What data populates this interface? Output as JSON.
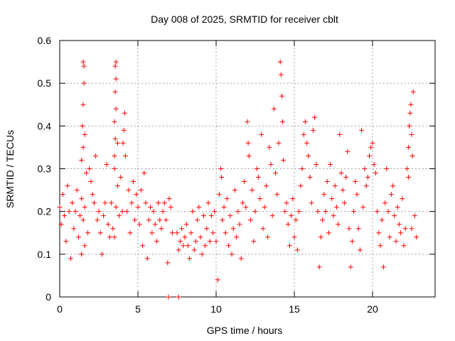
{
  "chart_data": {
    "type": "scatter",
    "title": "Day 008 of 2025, SRMTID for receiver cblt",
    "xlabel": "GPS time / hours",
    "ylabel": "SRMTID / TECUs",
    "xlim": [
      0,
      24
    ],
    "ylim": [
      0,
      0.6
    ],
    "xticks": [
      0,
      5,
      10,
      15,
      20
    ],
    "xtick_labels": [
      "0",
      "5",
      "10",
      "15",
      "20"
    ],
    "yticks": [
      0,
      0.1,
      0.2,
      0.3,
      0.4,
      0.5,
      0.6
    ],
    "ytick_labels": [
      "0",
      "0.1",
      "0.2",
      "0.3",
      "0.4",
      "0.5",
      "0.6"
    ],
    "grid": true,
    "marker": "plus",
    "color": "#ff0000",
    "series": [
      {
        "name": "SRMTID",
        "points": [
          [
            0.0,
            0.21
          ],
          [
            0.1,
            0.17
          ],
          [
            0.2,
            0.24
          ],
          [
            0.3,
            0.19
          ],
          [
            0.4,
            0.13
          ],
          [
            0.5,
            0.26
          ],
          [
            0.6,
            0.2
          ],
          [
            0.7,
            0.09
          ],
          [
            0.8,
            0.22
          ],
          [
            0.9,
            0.16
          ],
          [
            1.0,
            0.2
          ],
          [
            1.1,
            0.25
          ],
          [
            1.2,
            0.14
          ],
          [
            1.3,
            0.19
          ],
          [
            1.4,
            0.23
          ],
          [
            1.5,
            0.18
          ],
          [
            1.6,
            0.21
          ],
          [
            1.7,
            0.29
          ],
          [
            1.8,
            0.15
          ],
          [
            1.9,
            0.3
          ],
          [
            1.4,
            0.32
          ],
          [
            1.5,
            0.35
          ],
          [
            1.45,
            0.4
          ],
          [
            1.5,
            0.45
          ],
          [
            1.55,
            0.5
          ],
          [
            1.55,
            0.54
          ],
          [
            1.5,
            0.55
          ],
          [
            1.6,
            0.38
          ],
          [
            1.4,
            0.1
          ],
          [
            1.6,
            0.12
          ],
          [
            2.0,
            0.27
          ],
          [
            2.1,
            0.24
          ],
          [
            2.2,
            0.22
          ],
          [
            2.3,
            0.33
          ],
          [
            2.4,
            0.18
          ],
          [
            2.5,
            0.2
          ],
          [
            2.6,
            0.15
          ],
          [
            2.7,
            0.1
          ],
          [
            2.8,
            0.19
          ],
          [
            2.9,
            0.22
          ],
          [
            3.0,
            0.31
          ],
          [
            3.1,
            0.17
          ],
          [
            3.2,
            0.14
          ],
          [
            3.3,
            0.22
          ],
          [
            3.4,
            0.16
          ],
          [
            3.5,
            0.3
          ],
          [
            3.6,
            0.21
          ],
          [
            3.7,
            0.26
          ],
          [
            3.8,
            0.19
          ],
          [
            3.9,
            0.28
          ],
          [
            3.5,
            0.33
          ],
          [
            3.55,
            0.37
          ],
          [
            3.5,
            0.41
          ],
          [
            3.6,
            0.44
          ],
          [
            3.55,
            0.48
          ],
          [
            3.6,
            0.51
          ],
          [
            3.55,
            0.54
          ],
          [
            3.6,
            0.55
          ],
          [
            3.7,
            0.36
          ],
          [
            3.5,
            0.14
          ],
          [
            4.0,
            0.2
          ],
          [
            4.1,
            0.39
          ],
          [
            4.15,
            0.43
          ],
          [
            4.05,
            0.36
          ],
          [
            4.2,
            0.33
          ],
          [
            4.3,
            0.2
          ],
          [
            4.4,
            0.25
          ],
          [
            4.5,
            0.15
          ],
          [
            4.6,
            0.22
          ],
          [
            4.7,
            0.27
          ],
          [
            4.8,
            0.18
          ],
          [
            4.9,
            0.24
          ],
          [
            5.0,
            0.21
          ],
          [
            5.1,
            0.17
          ],
          [
            5.2,
            0.25
          ],
          [
            5.3,
            0.12
          ],
          [
            5.4,
            0.29
          ],
          [
            5.5,
            0.22
          ],
          [
            5.6,
            0.09
          ],
          [
            5.7,
            0.18
          ],
          [
            5.8,
            0.21
          ],
          [
            5.9,
            0.15
          ],
          [
            6.0,
            0.2
          ],
          [
            6.1,
            0.17
          ],
          [
            6.2,
            0.13
          ],
          [
            6.3,
            0.22
          ],
          [
            6.4,
            0.18
          ],
          [
            6.5,
            0.16
          ],
          [
            6.6,
            0.2
          ],
          [
            6.7,
            0.22
          ],
          [
            6.8,
            0.18
          ],
          [
            6.9,
            0.08
          ],
          [
            7.0,
            0.23
          ],
          [
            7.1,
            0.21
          ],
          [
            7.2,
            0.15
          ],
          [
            7.5,
            0.15
          ],
          [
            7.6,
            0.11
          ],
          [
            7.7,
            0.13
          ],
          [
            7.8,
            0.16
          ],
          [
            7.9,
            0.12
          ],
          [
            8.0,
            0.14
          ],
          [
            8.1,
            0.17
          ],
          [
            8.2,
            0.12
          ],
          [
            8.3,
            0.09
          ],
          [
            8.4,
            0.15
          ],
          [
            8.5,
            0.2
          ],
          [
            8.6,
            0.11
          ],
          [
            8.7,
            0.13
          ],
          [
            8.8,
            0.18
          ],
          [
            8.9,
            0.21
          ],
          [
            9.0,
            0.14
          ],
          [
            9.1,
            0.1
          ],
          [
            9.2,
            0.19
          ],
          [
            9.3,
            0.12
          ],
          [
            9.4,
            0.16
          ],
          [
            9.5,
            0.22
          ],
          [
            9.6,
            0.13
          ],
          [
            9.7,
            0.19
          ],
          [
            9.8,
            0.15
          ],
          [
            9.9,
            0.2
          ],
          [
            10.0,
            0.13
          ],
          [
            10.1,
            0.04
          ],
          [
            10.2,
            0.24
          ],
          [
            10.3,
            0.3
          ],
          [
            10.35,
            0.28
          ],
          [
            10.4,
            0.18
          ],
          [
            10.5,
            0.21
          ],
          [
            10.6,
            0.15
          ],
          [
            10.7,
            0.23
          ],
          [
            10.8,
            0.12
          ],
          [
            10.9,
            0.19
          ],
          [
            11.0,
            0.1
          ],
          [
            11.1,
            0.16
          ],
          [
            11.2,
            0.25
          ],
          [
            11.3,
            0.14
          ],
          [
            11.4,
            0.2
          ],
          [
            11.5,
            0.17
          ],
          [
            11.6,
            0.09
          ],
          [
            11.7,
            0.22
          ],
          [
            11.8,
            0.27
          ],
          [
            11.9,
            0.21
          ],
          [
            12.0,
            0.41
          ],
          [
            12.05,
            0.36
          ],
          [
            12.1,
            0.33
          ],
          [
            12.2,
            0.18
          ],
          [
            12.3,
            0.25
          ],
          [
            12.4,
            0.13
          ],
          [
            12.5,
            0.2
          ],
          [
            12.6,
            0.3
          ],
          [
            12.7,
            0.28
          ],
          [
            12.8,
            0.23
          ],
          [
            12.9,
            0.38
          ],
          [
            13.0,
            0.16
          ],
          [
            13.1,
            0.21
          ],
          [
            13.2,
            0.26
          ],
          [
            13.3,
            0.14
          ],
          [
            13.4,
            0.35
          ],
          [
            13.5,
            0.31
          ],
          [
            13.6,
            0.19
          ],
          [
            13.7,
            0.44
          ],
          [
            13.8,
            0.29
          ],
          [
            13.9,
            0.24
          ],
          [
            14.0,
            0.36
          ],
          [
            14.1,
            0.55
          ],
          [
            14.15,
            0.52
          ],
          [
            14.2,
            0.47
          ],
          [
            14.25,
            0.41
          ],
          [
            14.3,
            0.32
          ],
          [
            14.4,
            0.2
          ],
          [
            14.5,
            0.22
          ],
          [
            14.6,
            0.17
          ],
          [
            14.7,
            0.12
          ],
          [
            14.8,
            0.19
          ],
          [
            14.9,
            0.23
          ],
          [
            15.0,
            0.14
          ],
          [
            15.1,
            0.18
          ],
          [
            15.2,
            0.11
          ],
          [
            15.3,
            0.2
          ],
          [
            15.4,
            0.26
          ],
          [
            15.5,
            0.3
          ],
          [
            15.6,
            0.38
          ],
          [
            15.7,
            0.41
          ],
          [
            15.8,
            0.36
          ],
          [
            15.9,
            0.33
          ],
          [
            16.0,
            0.28
          ],
          [
            16.1,
            0.22
          ],
          [
            16.2,
            0.39
          ],
          [
            16.3,
            0.42
          ],
          [
            16.4,
            0.31
          ],
          [
            16.5,
            0.2
          ],
          [
            16.6,
            0.07
          ],
          [
            16.7,
            0.14
          ],
          [
            16.8,
            0.18
          ],
          [
            16.9,
            0.24
          ],
          [
            17.0,
            0.2
          ],
          [
            17.1,
            0.27
          ],
          [
            17.2,
            0.15
          ],
          [
            17.3,
            0.31
          ],
          [
            17.4,
            0.23
          ],
          [
            17.5,
            0.19
          ],
          [
            17.6,
            0.26
          ],
          [
            17.7,
            0.21
          ],
          [
            17.8,
            0.17
          ],
          [
            17.9,
            0.38
          ],
          [
            18.0,
            0.29
          ],
          [
            18.1,
            0.25
          ],
          [
            18.2,
            0.22
          ],
          [
            18.3,
            0.28
          ],
          [
            18.4,
            0.34
          ],
          [
            18.5,
            0.16
          ],
          [
            18.6,
            0.07
          ],
          [
            18.7,
            0.13
          ],
          [
            18.8,
            0.2
          ],
          [
            18.9,
            0.27
          ],
          [
            19.0,
            0.24
          ],
          [
            19.1,
            0.16
          ],
          [
            19.2,
            0.11
          ],
          [
            19.3,
            0.39
          ],
          [
            19.4,
            0.21
          ],
          [
            19.5,
            0.3
          ],
          [
            19.6,
            0.26
          ],
          [
            19.7,
            0.28
          ],
          [
            19.8,
            0.33
          ],
          [
            19.9,
            0.35
          ],
          [
            20.0,
            0.36
          ],
          [
            20.1,
            0.31
          ],
          [
            20.2,
            0.29
          ],
          [
            20.3,
            0.2
          ],
          [
            20.4,
            0.15
          ],
          [
            20.5,
            0.12
          ],
          [
            20.6,
            0.18
          ],
          [
            20.7,
            0.07
          ],
          [
            20.8,
            0.22
          ],
          [
            20.9,
            0.3
          ],
          [
            21.0,
            0.2
          ],
          [
            21.1,
            0.14
          ],
          [
            21.2,
            0.24
          ],
          [
            21.3,
            0.26
          ],
          [
            21.4,
            0.19
          ],
          [
            21.5,
            0.13
          ],
          [
            21.6,
            0.21
          ],
          [
            21.7,
            0.17
          ],
          [
            21.8,
            0.15
          ],
          [
            21.9,
            0.23
          ],
          [
            22.0,
            0.12
          ],
          [
            22.1,
            0.16
          ],
          [
            22.2,
            0.3
          ],
          [
            22.3,
            0.35
          ],
          [
            22.35,
            0.4
          ],
          [
            22.4,
            0.43
          ],
          [
            22.45,
            0.45
          ],
          [
            22.5,
            0.38
          ],
          [
            22.55,
            0.33
          ],
          [
            22.6,
            0.48
          ],
          [
            22.7,
            0.19
          ],
          [
            22.8,
            0.14
          ],
          [
            22.5,
            0.16
          ],
          [
            22.3,
            0.28
          ],
          [
            6.95,
            0.0
          ],
          [
            7.6,
            0.0
          ]
        ]
      }
    ]
  }
}
